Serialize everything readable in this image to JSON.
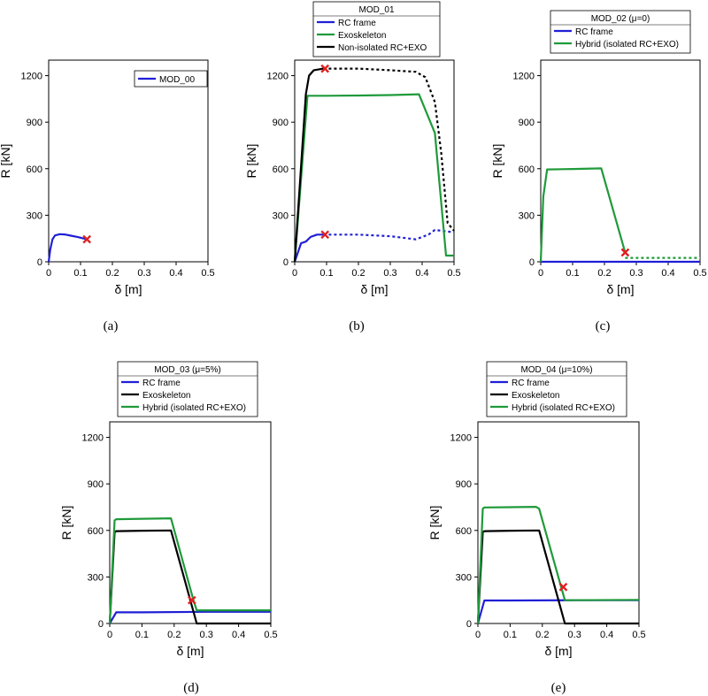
{
  "colors": {
    "blue": "#1f1fd6",
    "green": "#1f9a3a",
    "black": "#000000",
    "red": "#e02020"
  },
  "chart_data": [
    {
      "type": "line",
      "caption": "(a)",
      "legend_title": "",
      "xlabel": "δ  [m]",
      "ylabel": "R  [kN]",
      "xlim": [
        0,
        0.5
      ],
      "ylim": [
        0,
        1300
      ],
      "xticks": [
        "0",
        "0.1",
        "0.2",
        "0.3",
        "0.4",
        "0.5"
      ],
      "yticks": [
        "0",
        "300",
        "600",
        "900",
        "1200"
      ],
      "series": [
        {
          "name": "MOD_00",
          "color": "blue",
          "points": [
            [
              0,
              0
            ],
            [
              0.005,
              80
            ],
            [
              0.012,
              145
            ],
            [
              0.02,
              170
            ],
            [
              0.035,
              178
            ],
            [
              0.05,
              176
            ],
            [
              0.07,
              168
            ],
            [
              0.09,
              160
            ],
            [
              0.11,
              150
            ],
            [
              0.12,
              145
            ]
          ]
        }
      ],
      "markers": [
        [
          0.12,
          145
        ]
      ]
    },
    {
      "type": "line",
      "caption": "(b)",
      "legend_title": "MOD_01",
      "xlabel": "δ  [m]",
      "ylabel": "R  [kN]",
      "xlim": [
        0,
        0.5
      ],
      "ylim": [
        0,
        1300
      ],
      "xticks": [
        "0",
        "0.1",
        "0.2",
        "0.3",
        "0.4",
        "0.5"
      ],
      "yticks": [
        "0",
        "300",
        "600",
        "900",
        "1200"
      ],
      "series": [
        {
          "name": "RC frame",
          "color": "blue",
          "points": [
            [
              0,
              0
            ],
            [
              0.02,
              120
            ],
            [
              0.035,
              130
            ],
            [
              0.05,
              160
            ],
            [
              0.07,
              175
            ],
            [
              0.09,
              175
            ]
          ]
        },
        {
          "name": "",
          "color": "blue",
          "dashed": true,
          "points": [
            [
              0.09,
              175
            ],
            [
              0.2,
              175
            ],
            [
              0.3,
              165
            ],
            [
              0.38,
              145
            ],
            [
              0.42,
              175
            ],
            [
              0.44,
              205
            ],
            [
              0.46,
              200
            ],
            [
              0.5,
              190
            ]
          ]
        },
        {
          "name": "Exoskeleton",
          "color": "green",
          "points": [
            [
              0,
              0
            ],
            [
              0.04,
              1070
            ],
            [
              0.1,
              1070
            ],
            [
              0.2,
              1072
            ],
            [
              0.3,
              1075
            ],
            [
              0.39,
              1080
            ],
            [
              0.44,
              830
            ],
            [
              0.475,
              40
            ],
            [
              0.5,
              40
            ]
          ]
        },
        {
          "name": "Non-isolated RC+EXO",
          "color": "black",
          "points": [
            [
              0,
              0
            ],
            [
              0.035,
              1080
            ],
            [
              0.045,
              1200
            ],
            [
              0.06,
              1235
            ],
            [
              0.09,
              1245
            ]
          ]
        },
        {
          "name": "",
          "color": "black",
          "dashed": true,
          "points": [
            [
              0.09,
              1245
            ],
            [
              0.2,
              1245
            ],
            [
              0.3,
              1235
            ],
            [
              0.38,
              1225
            ],
            [
              0.41,
              1190
            ],
            [
              0.44,
              1030
            ],
            [
              0.46,
              700
            ],
            [
              0.48,
              250
            ],
            [
              0.5,
              200
            ]
          ]
        }
      ],
      "markers": [
        [
          0.095,
          1245
        ],
        [
          0.095,
          175
        ]
      ]
    },
    {
      "type": "line",
      "caption": "(c)",
      "legend_title": "MOD_02 (μ=0)",
      "xlabel": "δ  [m]",
      "ylabel": "R  [kN]",
      "xlim": [
        0,
        0.5
      ],
      "ylim": [
        0,
        1300
      ],
      "xticks": [
        "0",
        "0.1",
        "0.2",
        "0.3",
        "0.4",
        "0.5"
      ],
      "yticks": [
        "0",
        "300",
        "600",
        "900",
        "1200"
      ],
      "series": [
        {
          "name": "RC frame",
          "color": "blue",
          "points": [
            [
              0,
              0
            ],
            [
              0.5,
              0
            ]
          ]
        },
        {
          "name": "Hybrid (isolated RC+EXO)",
          "color": "green",
          "points": [
            [
              0,
              0
            ],
            [
              0.008,
              420
            ],
            [
              0.02,
              595
            ],
            [
              0.1,
              598
            ],
            [
              0.19,
              602
            ],
            [
              0.265,
              60
            ]
          ]
        },
        {
          "name": "",
          "color": "green",
          "dashed": true,
          "points": [
            [
              0.265,
              25
            ],
            [
              0.5,
              25
            ]
          ]
        }
      ],
      "markers": [
        [
          0.265,
          60
        ]
      ]
    },
    {
      "type": "line",
      "caption": "(d)",
      "legend_title": "MOD_03 (μ=5%)",
      "xlabel": "δ  [m]",
      "ylabel": "R  [kN]",
      "xlim": [
        0,
        0.5
      ],
      "ylim": [
        0,
        1300
      ],
      "xticks": [
        "0",
        "0.1",
        "0.2",
        "0.3",
        "0.4",
        "0.5"
      ],
      "yticks": [
        "0",
        "300",
        "600",
        "900",
        "1200"
      ],
      "series": [
        {
          "name": "RC frame",
          "color": "blue",
          "points": [
            [
              0,
              0
            ],
            [
              0.02,
              72
            ],
            [
              0.1,
              72
            ],
            [
              0.3,
              75
            ],
            [
              0.5,
              75
            ]
          ]
        },
        {
          "name": "Exoskeleton",
          "color": "black",
          "points": [
            [
              0,
              0
            ],
            [
              0.015,
              590
            ],
            [
              0.02,
              595
            ],
            [
              0.1,
              598
            ],
            [
              0.19,
              600
            ],
            [
              0.27,
              0
            ],
            [
              0.5,
              0
            ]
          ]
        },
        {
          "name": "Hybrid (isolated RC+EXO)",
          "color": "green",
          "points": [
            [
              0,
              0
            ],
            [
              0.015,
              665
            ],
            [
              0.02,
              672
            ],
            [
              0.1,
              675
            ],
            [
              0.19,
              678
            ],
            [
              0.26,
              150
            ],
            [
              0.27,
              85
            ],
            [
              0.5,
              85
            ]
          ]
        }
      ],
      "markers": [
        [
          0.255,
          150
        ]
      ]
    },
    {
      "type": "line",
      "caption": "(e)",
      "legend_title": "MOD_04 (μ=10%)",
      "xlabel": "δ  [m]",
      "ylabel": "R  [kN]",
      "xlim": [
        0,
        0.5
      ],
      "ylim": [
        0,
        1300
      ],
      "xticks": [
        "0",
        "0.1",
        "0.2",
        "0.3",
        "0.4",
        "0.5"
      ],
      "yticks": [
        "0",
        "300",
        "600",
        "900",
        "1200"
      ],
      "series": [
        {
          "name": "RC frame",
          "color": "blue",
          "points": [
            [
              0,
              0
            ],
            [
              0.02,
              148
            ],
            [
              0.1,
              148
            ],
            [
              0.3,
              150
            ],
            [
              0.5,
              150
            ]
          ]
        },
        {
          "name": "Exoskeleton",
          "color": "black",
          "points": [
            [
              0,
              0
            ],
            [
              0.015,
              590
            ],
            [
              0.02,
              595
            ],
            [
              0.1,
              598
            ],
            [
              0.19,
              600
            ],
            [
              0.27,
              0
            ],
            [
              0.5,
              0
            ]
          ]
        },
        {
          "name": "Hybrid (isolated RC+EXO)",
          "color": "green",
          "points": [
            [
              0,
              0
            ],
            [
              0.015,
              740
            ],
            [
              0.02,
              748
            ],
            [
              0.1,
              750
            ],
            [
              0.18,
              752
            ],
            [
              0.19,
              740
            ],
            [
              0.27,
              150
            ],
            [
              0.5,
              152
            ]
          ]
        }
      ],
      "markers": [
        [
          0.265,
          235
        ]
      ]
    }
  ]
}
